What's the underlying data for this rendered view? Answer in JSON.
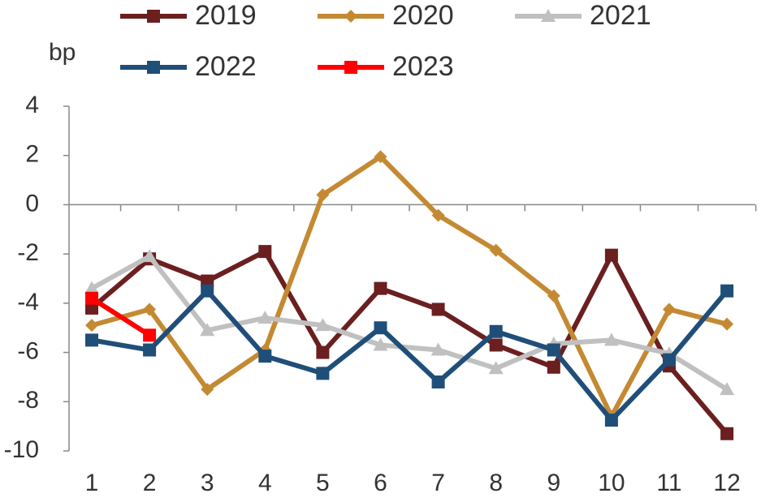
{
  "chart_data": {
    "type": "line",
    "y_label": "bp",
    "categories": [
      "1",
      "2",
      "3",
      "4",
      "5",
      "6",
      "7",
      "8",
      "9",
      "10",
      "11",
      "12"
    ],
    "series": [
      {
        "name": "2019",
        "color": "#6b1f1f",
        "marker": "square",
        "values": [
          -4.2,
          -2.2,
          -3.1,
          -1.9,
          -6.0,
          -3.4,
          -4.25,
          -5.7,
          -6.6,
          -2.05,
          -6.55,
          -9.3
        ]
      },
      {
        "name": "2020",
        "color": "#c48a33",
        "marker": "diamond",
        "values": [
          -4.9,
          -4.25,
          -7.5,
          -5.9,
          0.4,
          1.95,
          -0.43,
          -1.85,
          -3.7,
          -8.6,
          -4.25,
          -4.85
        ]
      },
      {
        "name": "2021",
        "color": "#c0c0c0",
        "marker": "triangle",
        "values": [
          -3.4,
          -2.1,
          -5.1,
          -4.6,
          -4.9,
          -5.7,
          -5.9,
          -6.65,
          -5.65,
          -5.5,
          -6.05,
          -7.5
        ]
      },
      {
        "name": "2022",
        "color": "#1f4e79",
        "marker": "square",
        "values": [
          -5.5,
          -5.9,
          -3.5,
          -6.15,
          -6.85,
          -5.0,
          -7.2,
          -5.15,
          -5.9,
          -8.75,
          -6.3,
          -3.5
        ]
      },
      {
        "name": "2023",
        "color": "#ff0000",
        "marker": "square",
        "values": [
          -3.8,
          -5.3,
          null,
          null,
          null,
          null,
          null,
          null,
          null,
          null,
          null,
          null
        ]
      }
    ],
    "ylim": [
      -10,
      4
    ],
    "yticks": [
      -10,
      -8,
      -6,
      -4,
      -2,
      0,
      2,
      4
    ]
  }
}
